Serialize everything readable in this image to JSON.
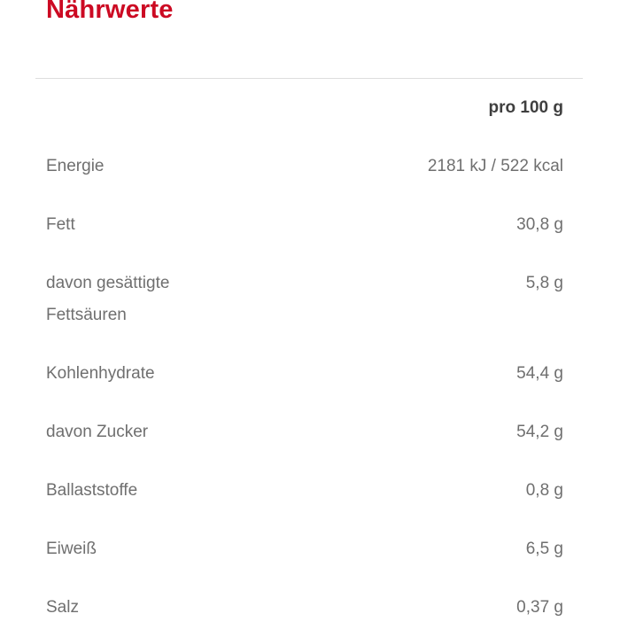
{
  "section": {
    "title": "Nährwerte"
  },
  "table": {
    "header": {
      "value_column": "pro 100 g"
    },
    "rows": [
      {
        "label": "Energie",
        "value": "2181 kJ / 522 kcal"
      },
      {
        "label": "Fett",
        "value": "30,8 g"
      },
      {
        "label": "davon gesättigte Fettsäuren",
        "value": "5,8 g"
      },
      {
        "label": "Kohlenhydrate",
        "value": "54,4 g"
      },
      {
        "label": "davon Zucker",
        "value": "54,2 g"
      },
      {
        "label": "Ballaststoffe",
        "value": "0,8 g"
      },
      {
        "label": "Eiweiß",
        "value": "6,5 g"
      },
      {
        "label": "Salz",
        "value": "0,37 g"
      }
    ]
  },
  "colors": {
    "title_red": "#cc0a23",
    "row_text_gray": "#6f6f6f",
    "header_text_dark": "#3f3f3f",
    "divider_gray": "#dedede",
    "background": "#ffffff"
  }
}
